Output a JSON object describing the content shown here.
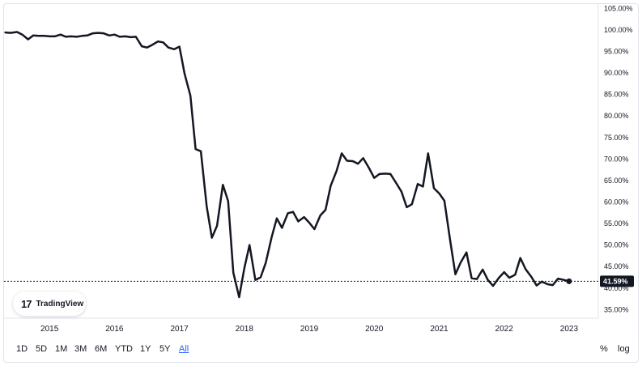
{
  "chart_data": {
    "type": "line",
    "title": "",
    "xlabel": "",
    "ylabel": "",
    "ylim": [
      33,
      106
    ],
    "xlim": [
      2014.3,
      2023.45
    ],
    "y_ticks": [
      "105.00%",
      "100.00%",
      "95.00%",
      "90.00%",
      "85.00%",
      "80.00%",
      "75.00%",
      "70.00%",
      "65.00%",
      "60.00%",
      "55.00%",
      "50.00%",
      "45.00%",
      "40.00%",
      "35.00%"
    ],
    "y_tick_values": [
      105,
      100,
      95,
      90,
      85,
      80,
      75,
      70,
      65,
      60,
      55,
      50,
      45,
      40,
      35
    ],
    "x_ticks": [
      "2015",
      "2016",
      "2017",
      "2018",
      "2019",
      "2020",
      "2021",
      "2022",
      "2023"
    ],
    "x_tick_values": [
      2015,
      2016,
      2017,
      2018,
      2019,
      2020,
      2021,
      2022,
      2023
    ],
    "last_value_label": "41.59%",
    "last_value": 41.59,
    "line_color": "#131722",
    "grid": false,
    "series": [
      {
        "x": [
          2014.32,
          2014.4,
          2014.5,
          2014.58,
          2014.67,
          2014.75,
          2014.83,
          2014.92,
          2015.0,
          2015.08,
          2015.17,
          2015.25,
          2015.33,
          2015.42,
          2015.5,
          2015.58,
          2015.67,
          2015.75,
          2015.83,
          2015.92,
          2016.0,
          2016.08,
          2016.17,
          2016.25,
          2016.33,
          2016.42,
          2016.5,
          2016.58,
          2016.67,
          2016.75,
          2016.83,
          2016.92,
          2017.0,
          2017.04,
          2017.08,
          2017.17,
          2017.25,
          2017.33,
          2017.42,
          2017.5,
          2017.58,
          2017.67,
          2017.75,
          2017.83,
          2017.92,
          2018.0,
          2018.08,
          2018.17,
          2018.25,
          2018.33,
          2018.42,
          2018.5,
          2018.58,
          2018.67,
          2018.75,
          2018.83,
          2018.92,
          2019.0,
          2019.08,
          2019.17,
          2019.25,
          2019.33,
          2019.42,
          2019.5,
          2019.58,
          2019.67,
          2019.75,
          2019.83,
          2019.92,
          2020.0,
          2020.08,
          2020.17,
          2020.25,
          2020.33,
          2020.42,
          2020.5,
          2020.58,
          2020.67,
          2020.75,
          2020.83,
          2020.92,
          2021.0,
          2021.08,
          2021.17,
          2021.25,
          2021.33,
          2021.42,
          2021.5,
          2021.58,
          2021.67,
          2021.75,
          2021.83,
          2021.92,
          2022.0,
          2022.08,
          2022.17,
          2022.25,
          2022.33,
          2022.42,
          2022.5,
          2022.58,
          2022.67,
          2022.75,
          2022.83,
          2022.92,
          2023.0
        ],
        "values": [
          99.4,
          99.3,
          99.5,
          98.9,
          97.8,
          98.7,
          98.6,
          98.6,
          98.5,
          98.5,
          98.9,
          98.4,
          98.5,
          98.4,
          98.6,
          98.7,
          99.2,
          99.3,
          99.2,
          98.7,
          98.9,
          98.4,
          98.5,
          98.3,
          98.4,
          96.2,
          95.9,
          96.5,
          97.3,
          97.1,
          95.9,
          95.5,
          96.1,
          93.0,
          89.8,
          84.7,
          72.3,
          71.8,
          59.0,
          51.7,
          54.5,
          64.0,
          60.2,
          43.6,
          37.9,
          44.6,
          50.0,
          41.9,
          42.5,
          45.9,
          51.8,
          56.2,
          54.0,
          57.4,
          57.7,
          55.5,
          56.5,
          55.2,
          53.7,
          56.9,
          58.2,
          63.8,
          67.2,
          71.3,
          69.6,
          69.5,
          68.9,
          70.2,
          67.9,
          65.6,
          66.5,
          66.6,
          66.5,
          64.6,
          62.4,
          58.8,
          59.5,
          64.2,
          63.6,
          71.3,
          63.2,
          62.0,
          60.3,
          51.0,
          43.2,
          45.9,
          48.3,
          42.3,
          42.1,
          44.3,
          41.9,
          40.5,
          42.4,
          43.7,
          42.4,
          43.1,
          47.0,
          44.4,
          42.6,
          40.6,
          41.5,
          40.9,
          40.7,
          42.2,
          41.9,
          41.59
        ]
      }
    ]
  },
  "logo": {
    "mark": "17",
    "text": "TradingView"
  },
  "toolbar": {
    "ranges": [
      "1D",
      "5D",
      "1M",
      "3M",
      "6M",
      "YTD",
      "1Y",
      "5Y",
      "All"
    ],
    "active_range": "All",
    "percent_label": "%",
    "log_label": "log"
  }
}
